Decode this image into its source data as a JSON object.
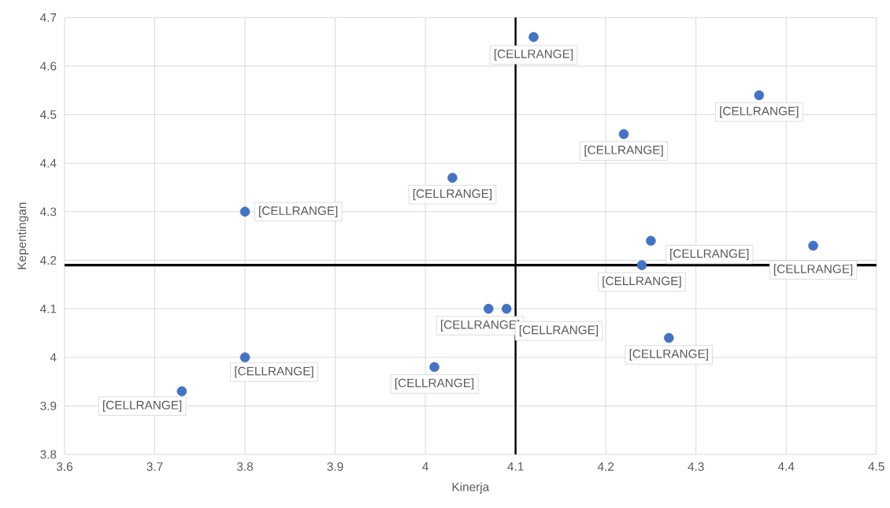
{
  "chart_data": {
    "type": "scatter",
    "xlabel": "Kinerja",
    "ylabel": "Kepentingan",
    "x": [
      4.12,
      4.37,
      4.22,
      4.03,
      3.8,
      4.25,
      4.43,
      4.24,
      4.07,
      4.09,
      4.27,
      3.8,
      4.01,
      3.73
    ],
    "values": [
      4.66,
      4.54,
      4.46,
      4.37,
      4.3,
      4.24,
      4.23,
      4.19,
      4.1,
      4.1,
      4.04,
      4.0,
      3.98,
      3.93
    ],
    "value_labels": [
      "[CELLRANGE]",
      "[CELLRANGE]",
      "[CELLRANGE]",
      "[CELLRANGE]",
      "[CELLRANGE]",
      "[CELLRANGE]",
      "[CELLRANGE]",
      "[CELLRANGE]",
      "[CELLRANGE]",
      "[CELLRANGE]",
      "[CELLRANGE]",
      "[CELLRANGE]",
      "[CELLRANGE]",
      "[CELLRANGE]"
    ],
    "color": "#4472c4",
    "grid": true,
    "xlim": [
      3.6,
      4.5
    ],
    "xticks": [
      3.6,
      3.7,
      3.8,
      3.9,
      4,
      4.1,
      4.2,
      4.3,
      4.4,
      4.5
    ],
    "ylim": [
      3.8,
      4.7
    ],
    "yticks": [
      3.8,
      3.9,
      4,
      4.1,
      4.2,
      4.3,
      4.4,
      4.5,
      4.6,
      4.7
    ],
    "ref_lines": [
      {
        "axis": "y",
        "value": 4.19,
        "color": "#000000"
      },
      {
        "axis": "x",
        "value": 4.1,
        "color": "#000000"
      }
    ]
  }
}
